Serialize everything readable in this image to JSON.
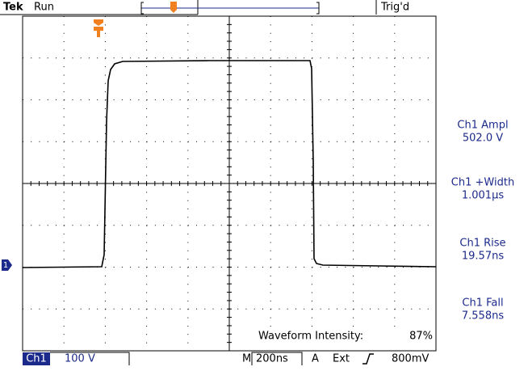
{
  "header": {
    "brand": "Tek",
    "status": "Run",
    "trigger_status": "Trig'd"
  },
  "channel_marker": "1",
  "measurements": [
    {
      "label": "Ch1 Ampl",
      "value": "502.0 V"
    },
    {
      "label": "Ch1 +Width",
      "value": "1.001µs"
    },
    {
      "label": "Ch1 Rise",
      "value": "19.57ns"
    },
    {
      "label": "Ch1 Fall",
      "value": "7.558ns"
    }
  ],
  "overlay": {
    "label": "Waveform Intensity:",
    "value": "87%"
  },
  "footer": {
    "channel": "Ch1",
    "scale": "100 V",
    "timebase_label": "M",
    "timebase": "200ns",
    "trigger_label": "A",
    "trigger_source": "Ext",
    "trigger_level": "800mV"
  }
}
